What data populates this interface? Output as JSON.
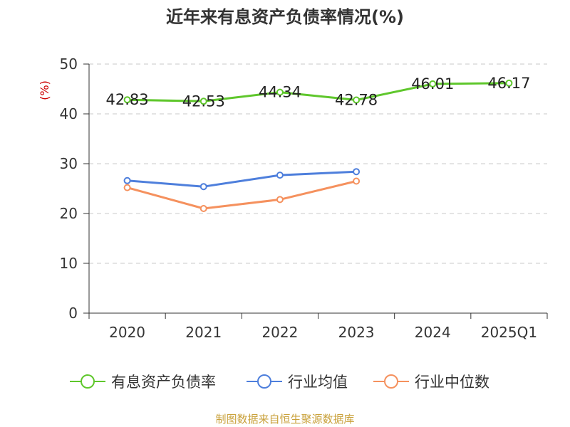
{
  "chart_data": {
    "type": "line",
    "title": "近年来有息资产负债率情况(%)",
    "ylabel": "(%)",
    "xlabel": "",
    "ylim": [
      0,
      50
    ],
    "yticks": [
      0,
      10,
      20,
      30,
      40,
      50
    ],
    "categories": [
      "2020",
      "2021",
      "2022",
      "2023",
      "2024",
      "2025Q1"
    ],
    "grid": true,
    "legend_position": "bottom",
    "series": [
      {
        "name": "有息资产负债率",
        "color": "#5fc72c",
        "values": [
          42.83,
          42.53,
          44.34,
          42.78,
          46.01,
          46.17
        ],
        "labels": [
          "42.83",
          "42.53",
          "44.34",
          "42.78",
          "46.01",
          "46.17"
        ]
      },
      {
        "name": "行业均值",
        "color": "#4e7fdc",
        "values": [
          26.6,
          25.4,
          27.7,
          28.4,
          null,
          null
        ]
      },
      {
        "name": "行业中位数",
        "color": "#f5915e",
        "values": [
          25.2,
          21.0,
          22.8,
          26.5,
          null,
          null
        ]
      }
    ]
  },
  "footer": "制图数据来自恒生聚源数据库"
}
